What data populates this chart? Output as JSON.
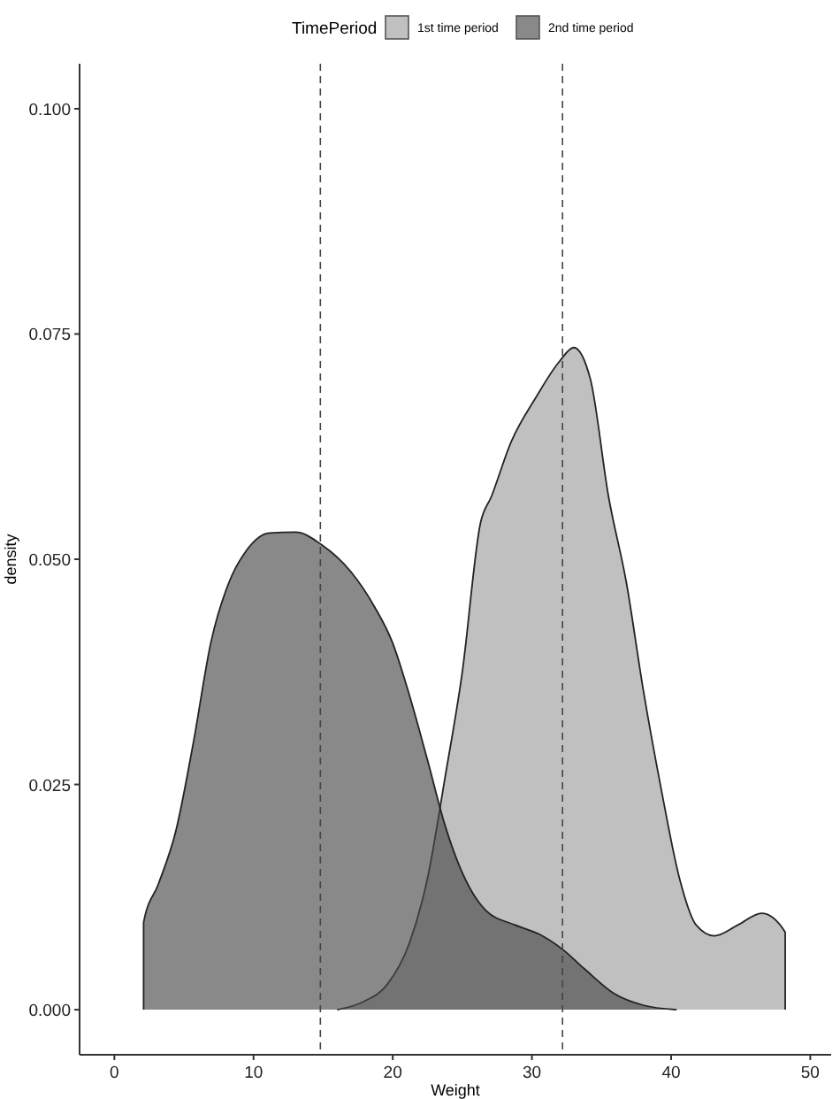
{
  "chart_data": {
    "type": "area",
    "xlabel": "Weight",
    "ylabel": "density",
    "legend_title": "TimePeriod",
    "legend": "top",
    "grid": false,
    "xlim": [
      -2.5,
      51.5
    ],
    "xticks": [
      0,
      10,
      20,
      30,
      40,
      50
    ],
    "ylim": [
      -0.005,
      0.105
    ],
    "yticks": [
      {
        "value": 0,
        "label": "0.000"
      },
      {
        "value": 0.025,
        "label": "0.025"
      },
      {
        "value": 0.05,
        "label": "0.050"
      },
      {
        "value": 0.075,
        "label": "0.075"
      },
      {
        "value": 0.1,
        "label": "0.100"
      }
    ],
    "ref_lines": [
      {
        "axis": "x",
        "value": 14.8,
        "line_style": "dashed"
      },
      {
        "axis": "x",
        "value": 32.2,
        "line_style": "dashed"
      }
    ],
    "series": [
      {
        "name": "1st time period",
        "color": "#c0c0c0",
        "x": [
          16.0,
          17.9,
          19.6,
          21.2,
          22.5,
          23.75,
          25.0,
          26.3,
          27.1,
          28.5,
          30.3,
          32.0,
          33.0,
          34.2,
          35.5,
          36.8,
          38.0,
          39.3,
          40.6,
          41.8,
          43.1,
          44.8,
          46.5,
          48.2,
          48.2
        ],
        "values": [
          0,
          0.0009,
          0.0028,
          0.0074,
          0.0146,
          0.0257,
          0.0375,
          0.054,
          0.057,
          0.063,
          0.068,
          0.072,
          0.0735,
          0.07,
          0.057,
          0.0473,
          0.0355,
          0.0244,
          0.0146,
          0.0094,
          0.0082,
          0.0094,
          0.0107,
          0.0086,
          0
        ]
      },
      {
        "name": "2nd time period",
        "color": "#4a4a4a",
        "x": [
          2.1,
          2.1,
          3.15,
          4.41,
          5.67,
          6.94,
          8.2,
          9.46,
          11.14,
          13.04,
          14.9,
          17.0,
          18.7,
          19.97,
          21.2,
          22.5,
          23.75,
          25.0,
          26.7,
          28.8,
          30.5,
          32.2,
          33.8,
          35.9,
          38.0,
          40.4
        ],
        "values": [
          0,
          0.0097,
          0.0139,
          0.0198,
          0.0296,
          0.0408,
          0.0473,
          0.0509,
          0.0529,
          0.053,
          0.0516,
          0.0486,
          0.0447,
          0.0408,
          0.0349,
          0.0277,
          0.0205,
          0.0152,
          0.011,
          0.0094,
          0.0084,
          0.0067,
          0.0045,
          0.0018,
          0.0005,
          0
        ]
      }
    ]
  }
}
